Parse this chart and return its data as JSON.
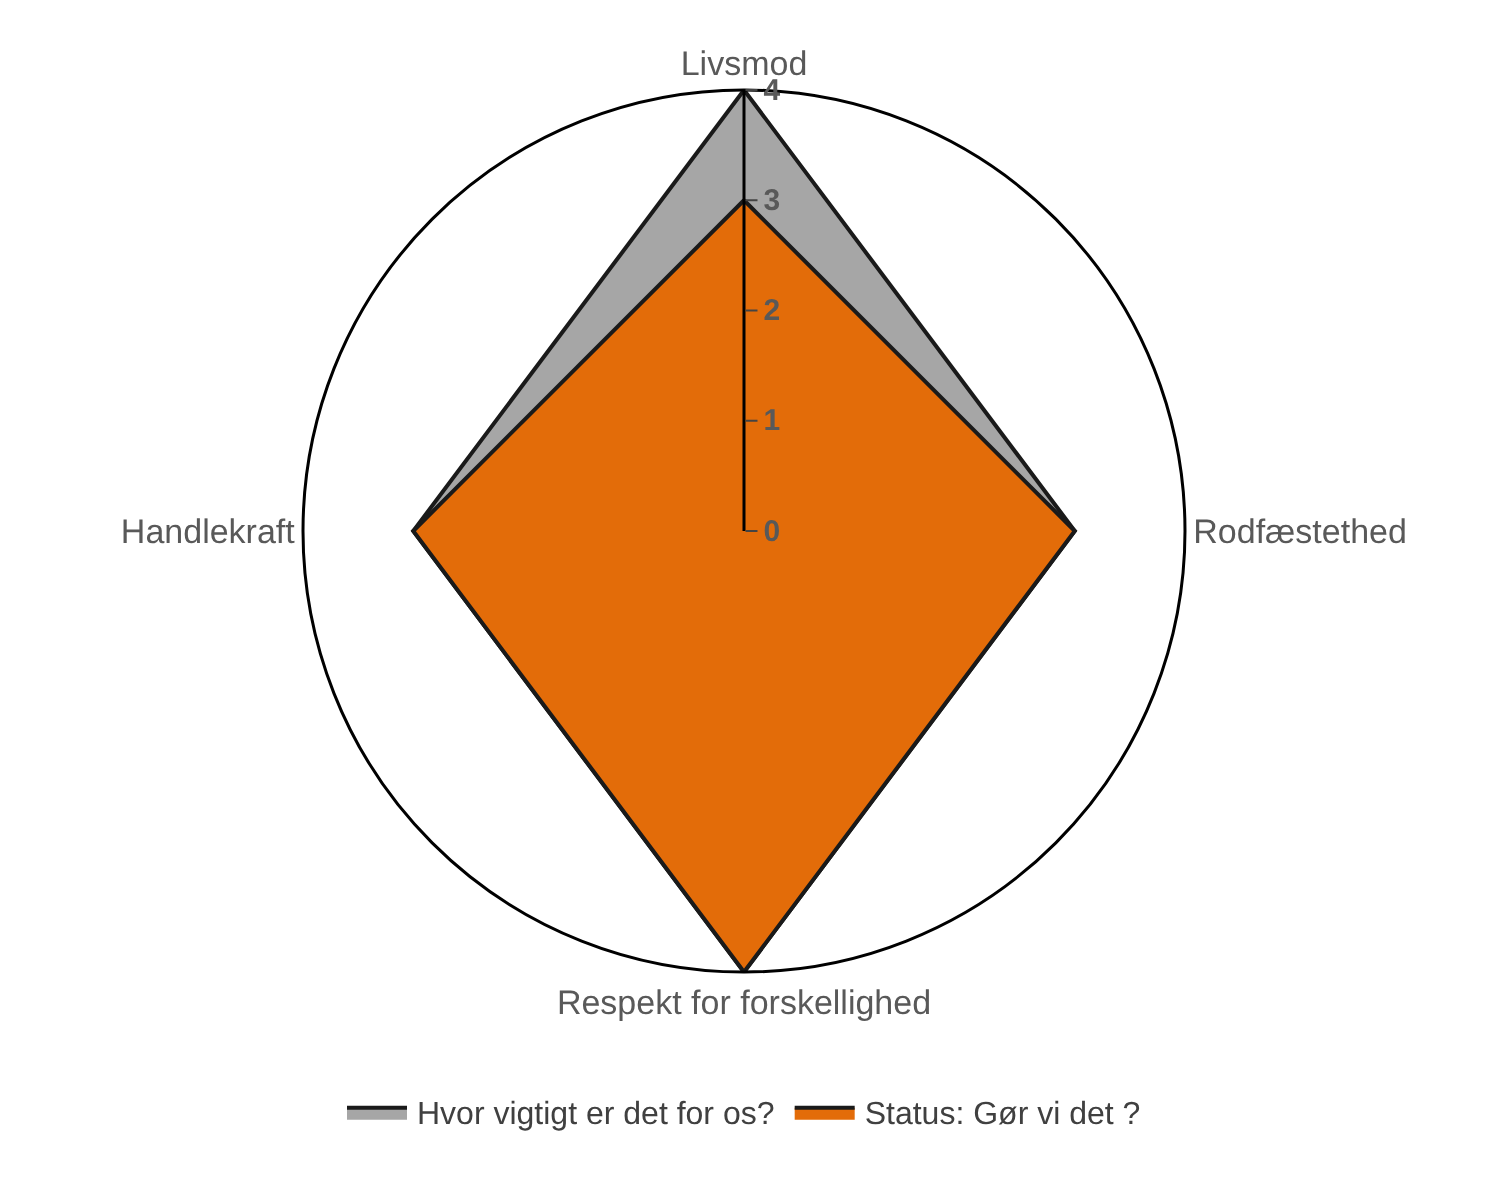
{
  "chart_data": {
    "type": "radar",
    "categories": [
      "Livsmod",
      "Rodfæstethed",
      "Respekt for forskellighed",
      "Handlekraft"
    ],
    "series": [
      {
        "name": "Hvor vigtigt er det for os?",
        "color": "#a6a6a6",
        "values": [
          4,
          3,
          4,
          3
        ]
      },
      {
        "name": "Status: Gør vi det ?",
        "color": "#e36c09",
        "values": [
          3,
          3,
          4,
          3
        ]
      }
    ],
    "ylim": [
      0,
      4
    ],
    "yticks": [
      0,
      1,
      2,
      3,
      4
    ],
    "grid": false,
    "legend": "bottom"
  }
}
